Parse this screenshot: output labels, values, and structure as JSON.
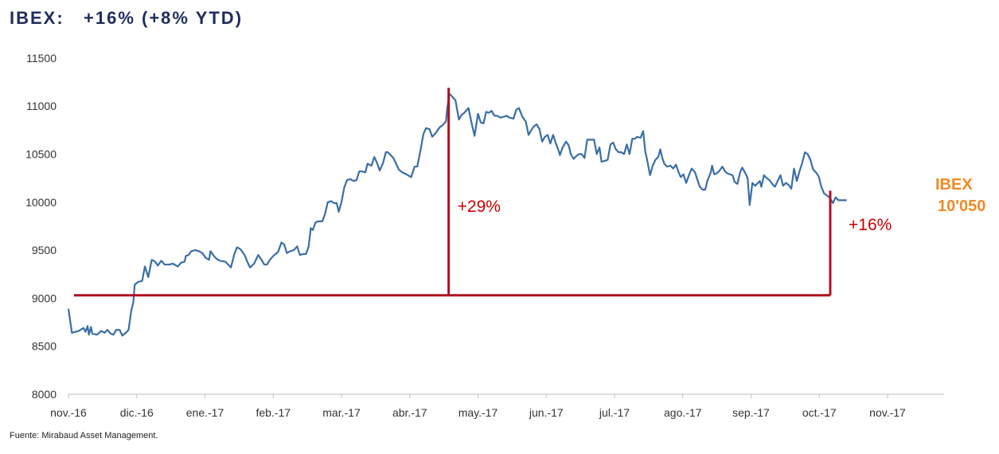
{
  "title": "IBEX:   +16% (+8% YTD)",
  "source": "Fuente: Mirabaud  Asset Management.",
  "colors": {
    "line": "#3a6ea5",
    "reference": "#b01020",
    "callout_text": "#cc0000",
    "end_label": "#f08a24",
    "title": "#1f2d5c"
  },
  "chart_data": {
    "type": "line",
    "title": "IBEX:   +16% (+8% YTD)",
    "xlabel": "",
    "ylabel": "",
    "ylim": [
      8000,
      11500
    ],
    "yticks": [
      8000,
      8500,
      9000,
      9500,
      10000,
      10500,
      11000,
      11500
    ],
    "xtick_labels": [
      "nov.-16",
      "dic.-16",
      "ene.-17",
      "feb.-17",
      "mar.-17",
      "abr.-17",
      "may.-17",
      "jun.-17",
      "jul.-17",
      "ago.-17",
      "sep.-17",
      "oct.-17",
      "nov.-17"
    ],
    "xlim_months": [
      0,
      12.83
    ],
    "grid": false,
    "legend": "none",
    "series": [
      {
        "values": [
          [
            0.0,
            8890
          ],
          [
            0.05,
            8640
          ],
          [
            0.15,
            8660
          ],
          [
            0.22,
            8690
          ],
          [
            0.25,
            8650
          ],
          [
            0.28,
            8710
          ],
          [
            0.3,
            8620
          ],
          [
            0.33,
            8700
          ],
          [
            0.35,
            8630
          ],
          [
            0.42,
            8620
          ],
          [
            0.48,
            8660
          ],
          [
            0.53,
            8640
          ],
          [
            0.57,
            8670
          ],
          [
            0.62,
            8630
          ],
          [
            0.66,
            8620
          ],
          [
            0.7,
            8670
          ],
          [
            0.75,
            8670
          ],
          [
            0.79,
            8610
          ],
          [
            0.84,
            8640
          ],
          [
            0.88,
            8670
          ],
          [
            0.92,
            8870
          ],
          [
            0.95,
            8960
          ],
          [
            0.97,
            9140
          ],
          [
            1.02,
            9170
          ],
          [
            1.08,
            9180
          ],
          [
            1.12,
            9330
          ],
          [
            1.17,
            9220
          ],
          [
            1.22,
            9400
          ],
          [
            1.27,
            9380
          ],
          [
            1.31,
            9340
          ],
          [
            1.36,
            9390
          ],
          [
            1.41,
            9350
          ],
          [
            1.47,
            9350
          ],
          [
            1.53,
            9360
          ],
          [
            1.6,
            9330
          ],
          [
            1.65,
            9370
          ],
          [
            1.7,
            9380
          ],
          [
            1.72,
            9440
          ],
          [
            1.76,
            9450
          ],
          [
            1.8,
            9490
          ],
          [
            1.86,
            9500
          ],
          [
            1.91,
            9490
          ],
          [
            1.96,
            9470
          ],
          [
            2.01,
            9420
          ],
          [
            2.06,
            9400
          ],
          [
            2.08,
            9490
          ],
          [
            2.13,
            9440
          ],
          [
            2.17,
            9410
          ],
          [
            2.22,
            9390
          ],
          [
            2.3,
            9380
          ],
          [
            2.38,
            9320
          ],
          [
            2.43,
            9460
          ],
          [
            2.47,
            9530
          ],
          [
            2.52,
            9510
          ],
          [
            2.58,
            9450
          ],
          [
            2.62,
            9380
          ],
          [
            2.66,
            9320
          ],
          [
            2.72,
            9360
          ],
          [
            2.78,
            9450
          ],
          [
            2.82,
            9410
          ],
          [
            2.87,
            9350
          ],
          [
            2.91,
            9350
          ],
          [
            2.95,
            9400
          ],
          [
            3.0,
            9440
          ],
          [
            3.07,
            9480
          ],
          [
            3.12,
            9580
          ],
          [
            3.16,
            9560
          ],
          [
            3.2,
            9470
          ],
          [
            3.25,
            9490
          ],
          [
            3.3,
            9500
          ],
          [
            3.35,
            9540
          ],
          [
            3.39,
            9450
          ],
          [
            3.44,
            9460
          ],
          [
            3.48,
            9460
          ],
          [
            3.52,
            9540
          ],
          [
            3.55,
            9730
          ],
          [
            3.58,
            9710
          ],
          [
            3.62,
            9790
          ],
          [
            3.66,
            9800
          ],
          [
            3.72,
            9800
          ],
          [
            3.76,
            9880
          ],
          [
            3.8,
            10000
          ],
          [
            3.85,
            10010
          ],
          [
            3.89,
            9990
          ],
          [
            3.93,
            9990
          ],
          [
            3.96,
            9900
          ],
          [
            4.0,
            10000
          ],
          [
            4.04,
            10150
          ],
          [
            4.08,
            10230
          ],
          [
            4.13,
            10240
          ],
          [
            4.18,
            10220
          ],
          [
            4.22,
            10230
          ],
          [
            4.26,
            10320
          ],
          [
            4.3,
            10320
          ],
          [
            4.35,
            10310
          ],
          [
            4.38,
            10400
          ],
          [
            4.44,
            10380
          ],
          [
            4.48,
            10470
          ],
          [
            4.52,
            10410
          ],
          [
            4.56,
            10330
          ],
          [
            4.61,
            10410
          ],
          [
            4.65,
            10520
          ],
          [
            4.68,
            10520
          ],
          [
            4.72,
            10490
          ],
          [
            4.76,
            10460
          ],
          [
            4.8,
            10400
          ],
          [
            4.84,
            10340
          ],
          [
            4.89,
            10310
          ],
          [
            4.95,
            10290
          ],
          [
            5.02,
            10260
          ],
          [
            5.07,
            10370
          ],
          [
            5.11,
            10370
          ],
          [
            5.16,
            10550
          ],
          [
            5.2,
            10710
          ],
          [
            5.24,
            10770
          ],
          [
            5.29,
            10760
          ],
          [
            5.33,
            10680
          ],
          [
            5.38,
            10720
          ],
          [
            5.44,
            10780
          ],
          [
            5.48,
            10800
          ],
          [
            5.53,
            10840
          ],
          [
            5.55,
            10980
          ],
          [
            5.58,
            11130
          ],
          [
            5.62,
            11100
          ],
          [
            5.67,
            11060
          ],
          [
            5.72,
            10860
          ],
          [
            5.76,
            10910
          ],
          [
            5.8,
            10930
          ],
          [
            5.86,
            10980
          ],
          [
            5.91,
            10810
          ],
          [
            5.95,
            10690
          ],
          [
            6.0,
            10920
          ],
          [
            6.04,
            10830
          ],
          [
            6.08,
            10820
          ],
          [
            6.12,
            10940
          ],
          [
            6.16,
            10930
          ],
          [
            6.2,
            10950
          ],
          [
            6.24,
            10900
          ],
          [
            6.28,
            10900
          ],
          [
            6.33,
            10880
          ],
          [
            6.38,
            10890
          ],
          [
            6.42,
            10900
          ],
          [
            6.46,
            10880
          ],
          [
            6.52,
            10870
          ],
          [
            6.56,
            10960
          ],
          [
            6.6,
            10980
          ],
          [
            6.65,
            10890
          ],
          [
            6.7,
            10840
          ],
          [
            6.74,
            10700
          ],
          [
            6.78,
            10750
          ],
          [
            6.82,
            10790
          ],
          [
            6.86,
            10810
          ],
          [
            6.9,
            10760
          ],
          [
            6.94,
            10630
          ],
          [
            6.98,
            10680
          ],
          [
            7.02,
            10700
          ],
          [
            7.06,
            10610
          ],
          [
            7.1,
            10700
          ],
          [
            7.14,
            10610
          ],
          [
            7.17,
            10560
          ],
          [
            7.2,
            10490
          ],
          [
            7.24,
            10570
          ],
          [
            7.29,
            10630
          ],
          [
            7.33,
            10590
          ],
          [
            7.36,
            10500
          ],
          [
            7.4,
            10450
          ],
          [
            7.44,
            10480
          ],
          [
            7.48,
            10500
          ],
          [
            7.52,
            10500
          ],
          [
            7.56,
            10460
          ],
          [
            7.6,
            10650
          ],
          [
            7.65,
            10650
          ],
          [
            7.7,
            10650
          ],
          [
            7.74,
            10500
          ],
          [
            7.78,
            10570
          ],
          [
            7.81,
            10420
          ],
          [
            7.86,
            10430
          ],
          [
            7.9,
            10440
          ],
          [
            7.94,
            10600
          ],
          [
            7.98,
            10620
          ],
          [
            8.02,
            10550
          ],
          [
            8.06,
            10520
          ],
          [
            8.1,
            10520
          ],
          [
            8.14,
            10500
          ],
          [
            8.18,
            10600
          ],
          [
            8.22,
            10500
          ],
          [
            8.26,
            10660
          ],
          [
            8.3,
            10660
          ],
          [
            8.33,
            10680
          ],
          [
            8.38,
            10670
          ],
          [
            8.42,
            10740
          ],
          [
            8.45,
            10530
          ],
          [
            8.48,
            10430
          ],
          [
            8.52,
            10280
          ],
          [
            8.56,
            10380
          ],
          [
            8.6,
            10440
          ],
          [
            8.64,
            10470
          ],
          [
            8.67,
            10550
          ],
          [
            8.7,
            10460
          ],
          [
            8.73,
            10400
          ],
          [
            8.77,
            10370
          ],
          [
            8.82,
            10380
          ],
          [
            8.86,
            10350
          ],
          [
            8.9,
            10390
          ],
          [
            8.94,
            10310
          ],
          [
            8.97,
            10260
          ],
          [
            9.01,
            10290
          ],
          [
            9.05,
            10200
          ],
          [
            9.09,
            10280
          ],
          [
            9.13,
            10350
          ],
          [
            9.18,
            10310
          ],
          [
            9.22,
            10220
          ],
          [
            9.25,
            10160
          ],
          [
            9.29,
            10130
          ],
          [
            9.33,
            10130
          ],
          [
            9.36,
            10220
          ],
          [
            9.41,
            10310
          ],
          [
            9.43,
            10380
          ],
          [
            9.46,
            10290
          ],
          [
            9.5,
            10300
          ],
          [
            9.54,
            10330
          ],
          [
            9.58,
            10370
          ],
          [
            9.62,
            10320
          ],
          [
            9.65,
            10300
          ],
          [
            9.69,
            10290
          ],
          [
            9.73,
            10280
          ],
          [
            9.76,
            10210
          ],
          [
            9.8,
            10190
          ],
          [
            9.84,
            10310
          ],
          [
            9.87,
            10360
          ],
          [
            9.91,
            10310
          ],
          [
            9.95,
            10250
          ],
          [
            9.98,
            9970
          ],
          [
            10.02,
            10200
          ],
          [
            10.06,
            10170
          ],
          [
            10.1,
            10200
          ],
          [
            10.13,
            10220
          ],
          [
            10.15,
            10160
          ],
          [
            10.19,
            10280
          ],
          [
            10.23,
            10250
          ],
          [
            10.27,
            10230
          ],
          [
            10.31,
            10190
          ],
          [
            10.35,
            10160
          ],
          [
            10.39,
            10220
          ],
          [
            10.43,
            10280
          ],
          [
            10.47,
            10170
          ],
          [
            10.51,
            10200
          ],
          [
            10.55,
            10180
          ],
          [
            10.59,
            10140
          ],
          [
            10.63,
            10350
          ],
          [
            10.67,
            10220
          ],
          [
            10.71,
            10320
          ],
          [
            10.75,
            10410
          ],
          [
            10.79,
            10520
          ],
          [
            10.83,
            10500
          ],
          [
            10.87,
            10440
          ],
          [
            10.91,
            10340
          ],
          [
            10.95,
            10310
          ],
          [
            10.99,
            10270
          ],
          [
            11.03,
            10160
          ],
          [
            11.07,
            10090
          ],
          [
            11.11,
            10070
          ],
          [
            11.15,
            10050
          ],
          [
            11.2,
            9990
          ],
          [
            11.24,
            10050
          ],
          [
            11.28,
            10020
          ],
          [
            11.32,
            10020
          ],
          [
            11.37,
            10020
          ],
          [
            11.4,
            10020
          ]
        ]
      }
    ],
    "annotations": [
      {
        "text": "+29%",
        "x": 5.57,
        "from": 9030,
        "to": 11190
      },
      {
        "text": "+16%",
        "x": 11.16,
        "from": 9030,
        "to": 10120
      },
      {
        "text_line1": "IBEX",
        "text_line2": "10'050"
      }
    ],
    "reference_level": 9030,
    "reference_xrange": [
      0.08,
      11.16
    ]
  }
}
